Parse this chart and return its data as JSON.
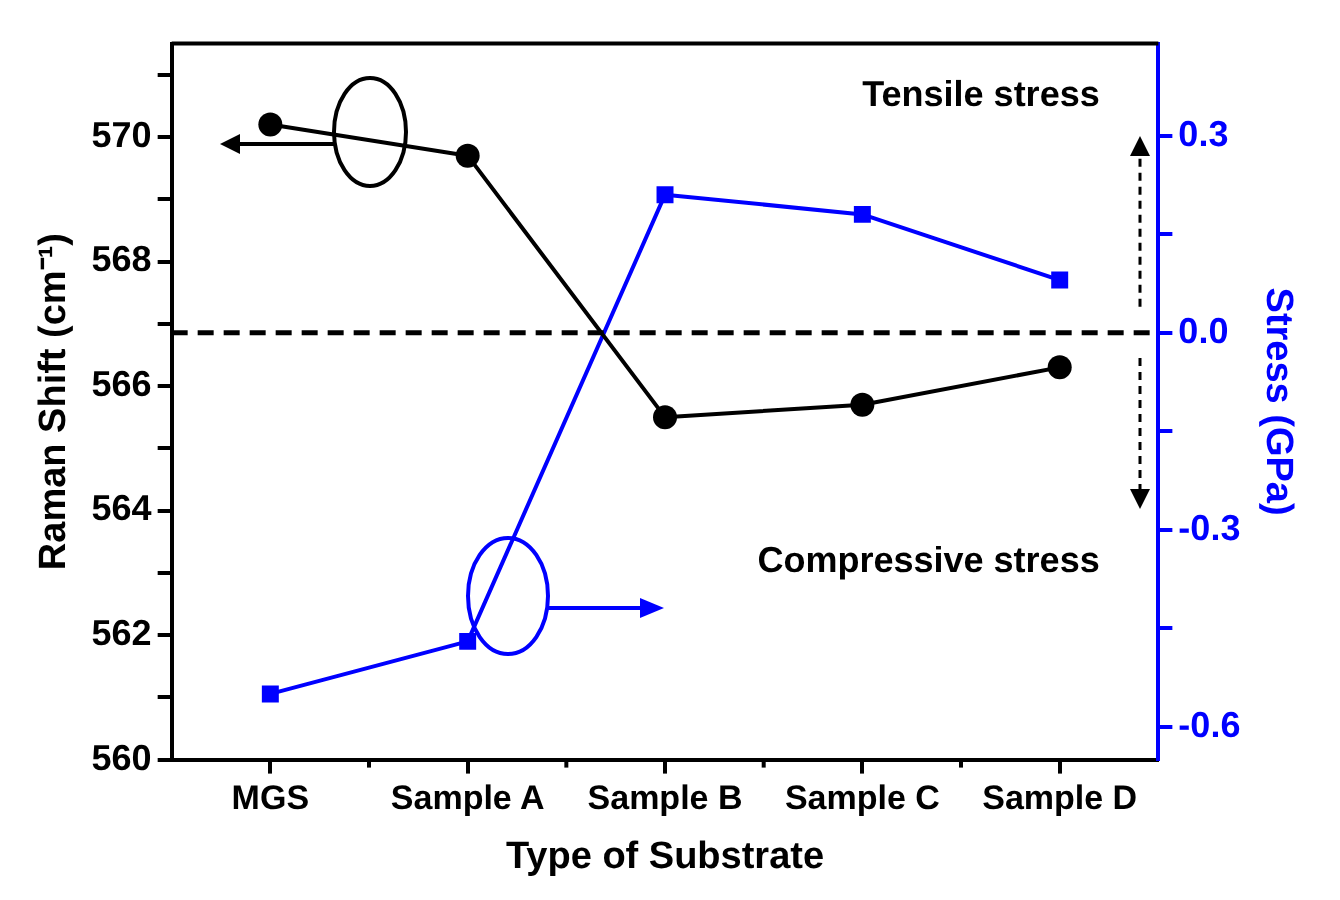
{
  "chart_data": {
    "type": "line",
    "xlabel": "Type of Substrate",
    "ylabel": "Raman Shift (cm⁻¹)",
    "y2label": "Stress (GPa)",
    "categories": [
      "MGS",
      "Sample A",
      "Sample B",
      "Sample C",
      "Sample D"
    ],
    "series": [
      {
        "color": "#000000",
        "marker": "circle",
        "values": [
          570.2,
          569.7,
          565.5,
          565.7,
          566.3
        ]
      },
      {
        "color": "#0000ff",
        "marker": "square",
        "axis": "y2",
        "values": [
          -0.55,
          -0.47,
          0.21,
          0.18,
          0.08
        ]
      }
    ],
    "ylim": [
      560,
      571.5
    ],
    "yticks": [
      560,
      {
        "value": 561,
        "label": null
      },
      562,
      {
        "value": 563,
        "label": null
      },
      564,
      {
        "value": 565,
        "label": null
      },
      566,
      {
        "value": 567,
        "label": null
      },
      568,
      {
        "value": 569,
        "label": null
      },
      570,
      {
        "value": 571,
        "label": null
      }
    ],
    "y2lim": [
      -0.65,
      0.44
    ],
    "y2ticks": [
      -0.6,
      {
        "value": -0.45,
        "label": null
      },
      -0.3,
      {
        "value": -0.15,
        "label": null
      },
      {
        "value": 0,
        "label": "0.0"
      },
      {
        "value": 0.15,
        "label": null
      },
      0.3
    ],
    "ref_lines": [
      {
        "axis": "y2",
        "value": 0,
        "color": "#000000",
        "line_style": "dashed"
      }
    ],
    "annotations": [
      "Tensile stress",
      "Compressive stress"
    ],
    "grid": false,
    "legend": false,
    "line_style": "solid"
  }
}
